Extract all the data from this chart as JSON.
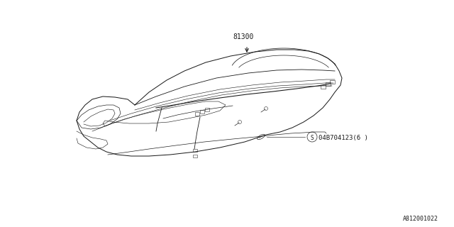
{
  "background_color": "#ffffff",
  "line_color": "#1a1a1a",
  "part_number_81300": "81300",
  "part_number_screw": "04B704123(6 )",
  "screw_symbol": "S",
  "diagram_id": "A812001022",
  "fig_width": 6.4,
  "fig_height": 3.2,
  "dpi": 100
}
